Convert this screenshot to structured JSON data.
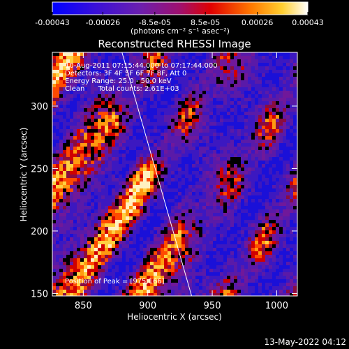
{
  "chart_data": {
    "type": "heatmap",
    "title": "Reconstructed RHESSI Image",
    "xlabel": "Heliocentric X (arcsec)",
    "ylabel": "Heliocentric Y (arcsec)",
    "xlim": [
      826,
      1016
    ],
    "ylim": [
      148,
      343
    ],
    "x_ticks": [
      850,
      900,
      950,
      1000
    ],
    "y_ticks": [
      150,
      200,
      250,
      300
    ],
    "colorbar": {
      "range": [
        -0.00043,
        0.00043
      ],
      "tick_labels": [
        "-0.00043",
        "-0.00026",
        "-8.5e-05",
        "8.5e-05",
        "0.00026",
        "0.00043"
      ],
      "units_label": "(photons cm⁻² s⁻¹ asec⁻²)",
      "colors": [
        "#0000ff",
        "#6a1fb0",
        "#a0106e",
        "#e00000",
        "#ff7a00",
        "#ffcf30",
        "#ffffff"
      ]
    },
    "annotations": {
      "time_range": "10-Aug-2011 07:15:44.000 to 07:17:44.000",
      "detectors": "Detectors: 3F 4F 5F 6F 7F 8F, Att 0",
      "energy": "Energy Range: 25.0 - 50.0 keV",
      "clean": "Clean      Total counts: 2.61E+03",
      "peak": "Position of Peak = [975,166]"
    },
    "limb_line": {
      "x": [
        880,
        934
      ],
      "y": [
        343,
        148
      ]
    }
  },
  "footer": {
    "timestamp": "13-May-2022 04:12"
  }
}
